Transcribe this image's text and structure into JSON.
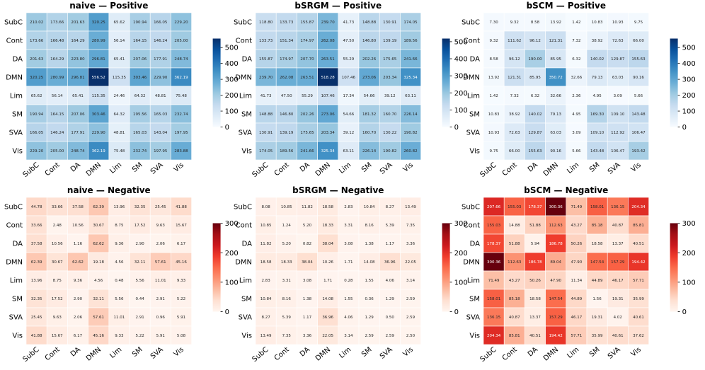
{
  "colors": {
    "positive_cmap": [
      "#f7fbff",
      "#deebf7",
      "#c6dbef",
      "#9ecae1",
      "#6baed6",
      "#4292c6",
      "#2171b5",
      "#08519c",
      "#08306b"
    ],
    "negative_cmap": [
      "#fff5f0",
      "#fee0d2",
      "#fcbba1",
      "#fc9272",
      "#fb6a4a",
      "#ef3b2c",
      "#cb181d",
      "#a50f15",
      "#67000d"
    ],
    "cell_border": "#ffffff"
  },
  "chart_data": [
    {
      "type": "heatmap",
      "title": "naive — Positive",
      "x_labels": [
        "SubC",
        "Cont",
        "DA",
        "DMN",
        "Lim",
        "SM",
        "SVA",
        "Vis"
      ],
      "y_labels": [
        "SubC",
        "Cont",
        "DA",
        "DMN",
        "Lim",
        "SM",
        "SVA",
        "Vis"
      ],
      "values": [
        [
          210.02,
          173.66,
          201.63,
          320.25,
          65.62,
          190.94,
          166.05,
          229.2
        ],
        [
          173.66,
          166.48,
          164.29,
          280.99,
          56.14,
          164.15,
          146.24,
          205.0
        ],
        [
          201.63,
          164.29,
          223.8,
          296.81,
          65.41,
          207.06,
          177.91,
          248.74
        ],
        [
          320.25,
          280.99,
          296.81,
          556.52,
          115.35,
          303.46,
          229.9,
          362.19
        ],
        [
          65.62,
          56.14,
          65.41,
          115.35,
          24.46,
          64.32,
          48.81,
          75.48
        ],
        [
          190.94,
          164.15,
          207.06,
          303.46,
          64.32,
          195.56,
          165.03,
          232.74
        ],
        [
          166.05,
          146.24,
          177.91,
          229.9,
          48.81,
          165.03,
          143.04,
          197.95
        ],
        [
          229.2,
          205.0,
          248.74,
          362.19,
          75.48,
          232.74,
          197.95,
          283.88
        ]
      ],
      "colorbar": {
        "range": [
          0,
          556.52
        ],
        "ticks": [
          0,
          100,
          200,
          300,
          400,
          500
        ]
      },
      "cmap": "blues"
    },
    {
      "type": "heatmap",
      "title": "bSRGM — Positive",
      "x_labels": [
        "SubC",
        "Cont",
        "DA",
        "DMN",
        "Lim",
        "SM",
        "SVA",
        "Vis"
      ],
      "y_labels": [
        "SubC",
        "Cont",
        "DA",
        "DMN",
        "Lim",
        "SM",
        "SVA",
        "Vis"
      ],
      "values": [
        [
          118.8,
          133.73,
          155.87,
          239.7,
          41.73,
          148.88,
          130.91,
          174.05
        ],
        [
          133.73,
          151.34,
          174.97,
          262.08,
          47.5,
          146.8,
          139.19,
          189.56
        ],
        [
          155.87,
          174.97,
          207.7,
          263.51,
          55.29,
          202.26,
          175.65,
          241.66
        ],
        [
          239.7,
          262.08,
          263.51,
          518.28,
          107.46,
          273.06,
          203.34,
          325.34
        ],
        [
          41.73,
          47.5,
          55.29,
          107.46,
          17.34,
          54.66,
          39.12,
          63.11
        ],
        [
          148.88,
          146.8,
          202.26,
          273.06,
          54.66,
          181.32,
          160.7,
          226.14
        ],
        [
          130.91,
          139.19,
          175.65,
          203.34,
          39.12,
          160.7,
          130.22,
          190.82
        ],
        [
          174.05,
          189.56,
          241.66,
          325.34,
          63.11,
          226.14,
          190.82,
          260.82
        ]
      ],
      "colorbar": {
        "range": [
          0,
          518.28
        ],
        "ticks": [
          0,
          100,
          200,
          300,
          400,
          500
        ]
      },
      "cmap": "blues"
    },
    {
      "type": "heatmap",
      "title": "bSCM — Positive",
      "x_labels": [
        "SubC",
        "Cont",
        "DA",
        "DMN",
        "Lim",
        "SM",
        "SVA",
        "Vis"
      ],
      "y_labels": [
        "SubC",
        "Cont",
        "DA",
        "DMN",
        "Lim",
        "SM",
        "SVA",
        "Vis"
      ],
      "values": [
        [
          7.3,
          9.32,
          8.58,
          13.92,
          1.42,
          10.83,
          10.93,
          9.75
        ],
        [
          9.32,
          111.62,
          96.12,
          121.31,
          7.32,
          38.92,
          72.63,
          66.0
        ],
        [
          8.58,
          96.12,
          190.0,
          85.95,
          6.32,
          140.02,
          129.87,
          155.63
        ],
        [
          13.92,
          121.31,
          85.95,
          350.72,
          32.66,
          79.13,
          63.03,
          90.16
        ],
        [
          1.42,
          7.32,
          6.32,
          32.66,
          2.36,
          4.95,
          3.09,
          5.66
        ],
        [
          10.83,
          38.92,
          140.02,
          79.13,
          4.95,
          169.3,
          109.1,
          143.48
        ],
        [
          10.93,
          72.63,
          129.87,
          63.03,
          3.09,
          109.1,
          112.92,
          106.47
        ],
        [
          9.75,
          66.0,
          155.63,
          90.16,
          5.66,
          143.48,
          106.47,
          193.42
        ]
      ],
      "colorbar": {
        "range": [
          0,
          556.52
        ],
        "ticks": [
          0,
          100,
          200,
          300,
          400,
          500
        ]
      },
      "cmap": "blues"
    },
    {
      "type": "heatmap",
      "title": "naive — Negative",
      "x_labels": [
        "SubC",
        "Cont",
        "DA",
        "DMN",
        "Lim",
        "SM",
        "SVA",
        "Vis"
      ],
      "y_labels": [
        "SubC",
        "Cont",
        "DA",
        "DMN",
        "Lim",
        "SM",
        "SVA",
        "Vis"
      ],
      "values": [
        [
          44.78,
          33.66,
          37.58,
          62.39,
          13.96,
          32.35,
          25.45,
          41.88
        ],
        [
          33.66,
          2.48,
          10.56,
          30.67,
          8.75,
          17.52,
          9.63,
          15.67
        ],
        [
          37.58,
          10.56,
          1.16,
          62.62,
          9.36,
          2.9,
          2.06,
          6.17
        ],
        [
          62.39,
          30.67,
          62.62,
          19.18,
          4.56,
          32.11,
          57.61,
          45.16
        ],
        [
          13.96,
          8.75,
          9.36,
          4.56,
          0.48,
          5.56,
          11.01,
          9.33
        ],
        [
          32.35,
          17.52,
          2.9,
          32.11,
          5.56,
          0.44,
          2.91,
          5.22
        ],
        [
          25.45,
          9.63,
          2.06,
          57.61,
          11.01,
          2.91,
          0.96,
          5.91
        ],
        [
          41.88,
          15.67,
          6.17,
          45.16,
          9.33,
          5.22,
          5.91,
          5.08
        ]
      ],
      "colorbar": {
        "range": [
          0,
          300.36
        ],
        "ticks": [
          0,
          100,
          200,
          300
        ]
      },
      "cmap": "reds"
    },
    {
      "type": "heatmap",
      "title": "bSRGM — Negative",
      "x_labels": [
        "SubC",
        "Cont",
        "DA",
        "DMN",
        "Lim",
        "SM",
        "SVA",
        "Vis"
      ],
      "y_labels": [
        "SubC",
        "Cont",
        "DA",
        "DMN",
        "Lim",
        "SM",
        "SVA",
        "Vis"
      ],
      "values": [
        [
          8.08,
          10.85,
          11.82,
          18.58,
          2.83,
          10.84,
          8.27,
          13.49
        ],
        [
          10.85,
          1.24,
          5.2,
          18.33,
          3.31,
          8.16,
          5.39,
          7.35
        ],
        [
          11.82,
          5.2,
          0.82,
          38.04,
          3.08,
          1.38,
          1.17,
          3.36
        ],
        [
          18.58,
          18.33,
          38.04,
          10.26,
          1.71,
          14.08,
          36.96,
          22.05
        ],
        [
          2.83,
          3.31,
          3.08,
          1.71,
          0.28,
          1.55,
          4.06,
          3.14
        ],
        [
          10.84,
          8.16,
          1.38,
          14.08,
          1.55,
          0.36,
          1.29,
          2.59
        ],
        [
          8.27,
          5.39,
          1.17,
          36.96,
          4.06,
          1.29,
          0.5,
          2.59
        ],
        [
          13.49,
          7.35,
          3.36,
          22.05,
          3.14,
          2.59,
          2.59,
          2.5
        ]
      ],
      "colorbar": {
        "range": [
          0,
          300.36
        ],
        "ticks": [
          0,
          100,
          200,
          300
        ]
      },
      "cmap": "reds"
    },
    {
      "type": "heatmap",
      "title": "bSCM — Negative",
      "x_labels": [
        "SubC",
        "Cont",
        "DA",
        "DMN",
        "Lim",
        "SM",
        "SVA",
        "Vis"
      ],
      "y_labels": [
        "SubC",
        "Cont",
        "DA",
        "DMN",
        "Lim",
        "SM",
        "SVA",
        "Vis"
      ],
      "values": [
        [
          207.66,
          155.03,
          178.37,
          300.36,
          71.49,
          158.01,
          136.15,
          204.34
        ],
        [
          155.03,
          14.88,
          51.88,
          112.63,
          43.27,
          85.18,
          40.87,
          85.81
        ],
        [
          178.37,
          51.88,
          5.94,
          186.78,
          50.26,
          18.58,
          13.37,
          40.51
        ],
        [
          300.36,
          112.63,
          186.78,
          89.04,
          47.9,
          147.54,
          157.29,
          194.42
        ],
        [
          71.49,
          43.27,
          50.26,
          47.9,
          11.34,
          44.89,
          46.17,
          57.71
        ],
        [
          158.01,
          85.18,
          18.58,
          147.54,
          44.89,
          1.56,
          19.31,
          35.99
        ],
        [
          136.15,
          40.87,
          13.37,
          157.29,
          46.17,
          19.31,
          4.02,
          40.61
        ],
        [
          204.34,
          85.81,
          40.51,
          194.42,
          57.71,
          35.99,
          40.61,
          37.62
        ]
      ],
      "colorbar": {
        "range": [
          0,
          300.36
        ],
        "ticks": [
          0,
          100,
          200,
          300
        ]
      },
      "cmap": "reds"
    }
  ]
}
